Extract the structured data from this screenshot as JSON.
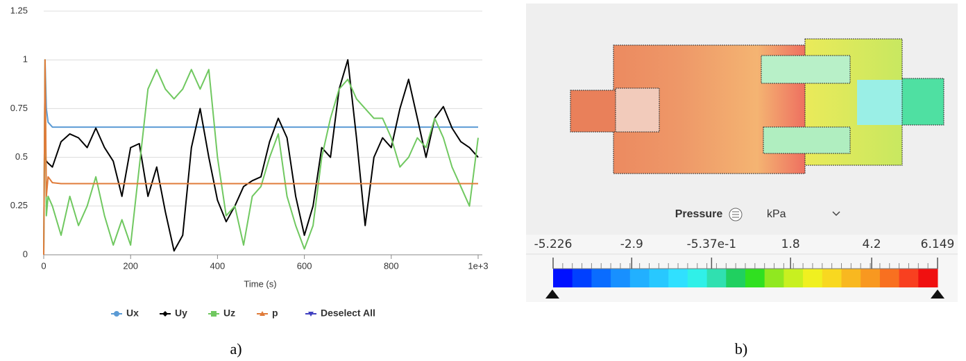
{
  "chart_data": {
    "type": "line",
    "x": [
      0,
      3,
      6,
      10,
      20,
      40,
      60,
      80,
      100,
      120,
      140,
      160,
      180,
      200,
      220,
      240,
      260,
      280,
      300,
      320,
      340,
      360,
      380,
      400,
      420,
      440,
      460,
      480,
      500,
      520,
      540,
      560,
      580,
      600,
      620,
      640,
      660,
      680,
      700,
      720,
      740,
      760,
      780,
      800,
      820,
      840,
      860,
      880,
      900,
      920,
      940,
      960,
      980,
      1000
    ],
    "series": [
      {
        "name": "Ux",
        "color": "#5b9bd5",
        "marker": "circle",
        "values": [
          0,
          1,
          0.75,
          0.68,
          0.655,
          0.655,
          0.655,
          0.655,
          0.655,
          0.655,
          0.655,
          0.655,
          0.655,
          0.655,
          0.655,
          0.655,
          0.655,
          0.655,
          0.655,
          0.655,
          0.655,
          0.655,
          0.655,
          0.655,
          0.655,
          0.655,
          0.655,
          0.655,
          0.655,
          0.655,
          0.655,
          0.655,
          0.655,
          0.655,
          0.655,
          0.655,
          0.655,
          0.655,
          0.655,
          0.655,
          0.655,
          0.655,
          0.655,
          0.655,
          0.655,
          0.655,
          0.655,
          0.655,
          0.655,
          0.655,
          0.655,
          0.655,
          0.655,
          0.655
        ]
      },
      {
        "name": "Uy",
        "color": "#000000",
        "marker": "diamond",
        "values": [
          0.5,
          0.5,
          0.48,
          0.47,
          0.45,
          0.58,
          0.62,
          0.6,
          0.55,
          0.65,
          0.55,
          0.48,
          0.3,
          0.55,
          0.57,
          0.3,
          0.45,
          0.22,
          0.02,
          0.1,
          0.55,
          0.75,
          0.5,
          0.28,
          0.17,
          0.25,
          0.35,
          0.38,
          0.4,
          0.58,
          0.7,
          0.6,
          0.3,
          0.1,
          0.25,
          0.55,
          0.5,
          0.85,
          1,
          0.6,
          0.15,
          0.5,
          0.6,
          0.55,
          0.75,
          0.9,
          0.7,
          0.5,
          0.7,
          0.76,
          0.65,
          0.58,
          0.55,
          0.5
        ]
      },
      {
        "name": "Uz",
        "color": "#70c860",
        "marker": "square",
        "values": [
          0,
          1,
          0.2,
          0.3,
          0.25,
          0.1,
          0.3,
          0.15,
          0.25,
          0.4,
          0.2,
          0.05,
          0.18,
          0.05,
          0.45,
          0.85,
          0.95,
          0.85,
          0.8,
          0.85,
          0.95,
          0.85,
          0.95,
          0.5,
          0.2,
          0.25,
          0.05,
          0.3,
          0.35,
          0.5,
          0.62,
          0.3,
          0.15,
          0.03,
          0.15,
          0.5,
          0.7,
          0.85,
          0.9,
          0.8,
          0.75,
          0.7,
          0.7,
          0.6,
          0.45,
          0.5,
          0.6,
          0.55,
          0.7,
          0.6,
          0.45,
          0.35,
          0.25,
          0.6
        ]
      },
      {
        "name": "p",
        "color": "#e07b39",
        "marker": "triangle",
        "values": [
          0,
          1,
          0.3,
          0.4,
          0.37,
          0.365,
          0.365,
          0.365,
          0.365,
          0.365,
          0.365,
          0.365,
          0.365,
          0.365,
          0.365,
          0.365,
          0.365,
          0.365,
          0.365,
          0.365,
          0.365,
          0.365,
          0.365,
          0.365,
          0.365,
          0.365,
          0.365,
          0.365,
          0.365,
          0.365,
          0.365,
          0.365,
          0.365,
          0.365,
          0.365,
          0.365,
          0.365,
          0.365,
          0.365,
          0.365,
          0.365,
          0.365,
          0.365,
          0.365,
          0.365,
          0.365,
          0.365,
          0.365,
          0.365,
          0.365,
          0.365,
          0.365,
          0.365,
          0.365
        ]
      }
    ],
    "xlim": [
      0,
      1000
    ],
    "xticks": [
      0,
      200,
      400,
      600,
      800,
      {
        "value": 1000,
        "label": "1e+3"
      }
    ],
    "ylim": [
      0,
      1.25
    ],
    "yticks": [
      0,
      0.25,
      0.5,
      0.75,
      1,
      1.25
    ],
    "xlabel": "Time (s)",
    "grid": true
  },
  "legend_button": "Deselect All",
  "panel_a_label": "a)",
  "panel_b_label": "b)",
  "contour": {
    "field": "Pressure",
    "unit": "kPa",
    "range": [
      -5.226,
      6.149
    ],
    "ticks": [
      -5.226,
      -2.9,
      {
        "value": -0.537,
        "label": "-5.37e-1"
      },
      1.8,
      4.2,
      6.149
    ]
  }
}
